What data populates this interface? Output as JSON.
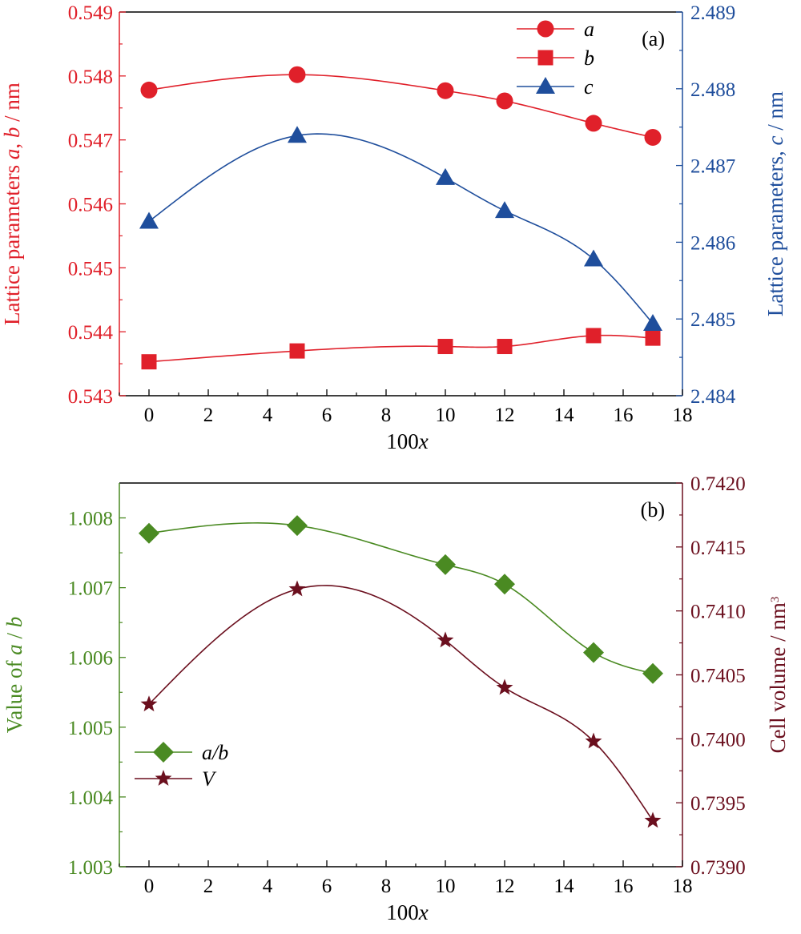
{
  "chart_data": [
    {
      "panel": "(a)",
      "type": "line",
      "x": [
        0,
        5,
        10,
        12,
        15,
        17
      ],
      "xlabel": "100x",
      "xlim": [
        -1,
        18
      ],
      "xticks": [
        "0",
        "2",
        "4",
        "6",
        "8",
        "10",
        "12",
        "14",
        "16",
        "18"
      ],
      "ylabel_left": "Lattice parameters a, b / nm",
      "ylim_left": [
        0.543,
        0.549
      ],
      "yticks_left": [
        "0.543",
        "0.544",
        "0.545",
        "0.546",
        "0.547",
        "0.548",
        "0.549"
      ],
      "ylabel_right": "Lattice parameters, c / nm",
      "ylim_right": [
        2.484,
        2.489
      ],
      "yticks_right": [
        "2.484",
        "2.485",
        "2.486",
        "2.487",
        "2.488",
        "2.489"
      ],
      "legend_position": "top-right",
      "series": [
        {
          "name": "a",
          "axis": "left",
          "marker": "circle",
          "color": "#e0202a",
          "values": [
            0.54778,
            0.54802,
            0.54777,
            0.54761,
            0.54726,
            0.54704
          ]
        },
        {
          "name": "b",
          "axis": "left",
          "marker": "square",
          "color": "#e0202a",
          "values": [
            0.54353,
            0.5437,
            0.54377,
            0.54377,
            0.54394,
            0.5439
          ]
        },
        {
          "name": "c",
          "axis": "right",
          "marker": "triangle",
          "color": "#1f4e9c",
          "values": [
            2.48627,
            2.48739,
            2.48684,
            2.48641,
            2.48578,
            2.48494
          ]
        }
      ]
    },
    {
      "panel": "(b)",
      "type": "line",
      "x": [
        0,
        5,
        10,
        12,
        15,
        17
      ],
      "xlabel": "100x",
      "xlim": [
        -1,
        18
      ],
      "xticks": [
        "0",
        "2",
        "4",
        "6",
        "8",
        "10",
        "12",
        "14",
        "16",
        "18"
      ],
      "ylabel_left": "Value of a / b",
      "ylim_left": [
        1.003,
        1.0085
      ],
      "yticks_left": [
        "1.003",
        "1.004",
        "1.005",
        "1.006",
        "1.007",
        "1.008"
      ],
      "ylabel_right": "Cell volume / nm³",
      "ylim_right": [
        0.739,
        0.742
      ],
      "yticks_right": [
        "0.7390",
        "0.7395",
        "0.7400",
        "0.7405",
        "0.7410",
        "0.7415",
        "0.7420"
      ],
      "legend_position": "bottom-left",
      "series": [
        {
          "name": "a/b",
          "axis": "left",
          "marker": "diamond",
          "color": "#4a8a22",
          "values": [
            1.00778,
            1.00789,
            1.00733,
            1.00705,
            1.00607,
            1.00577
          ]
        },
        {
          "name": "V",
          "axis": "right",
          "marker": "star",
          "color": "#6b0f1e",
          "values": [
            0.74027,
            0.74117,
            0.74077,
            0.7404,
            0.73998,
            0.73936
          ]
        }
      ]
    }
  ]
}
